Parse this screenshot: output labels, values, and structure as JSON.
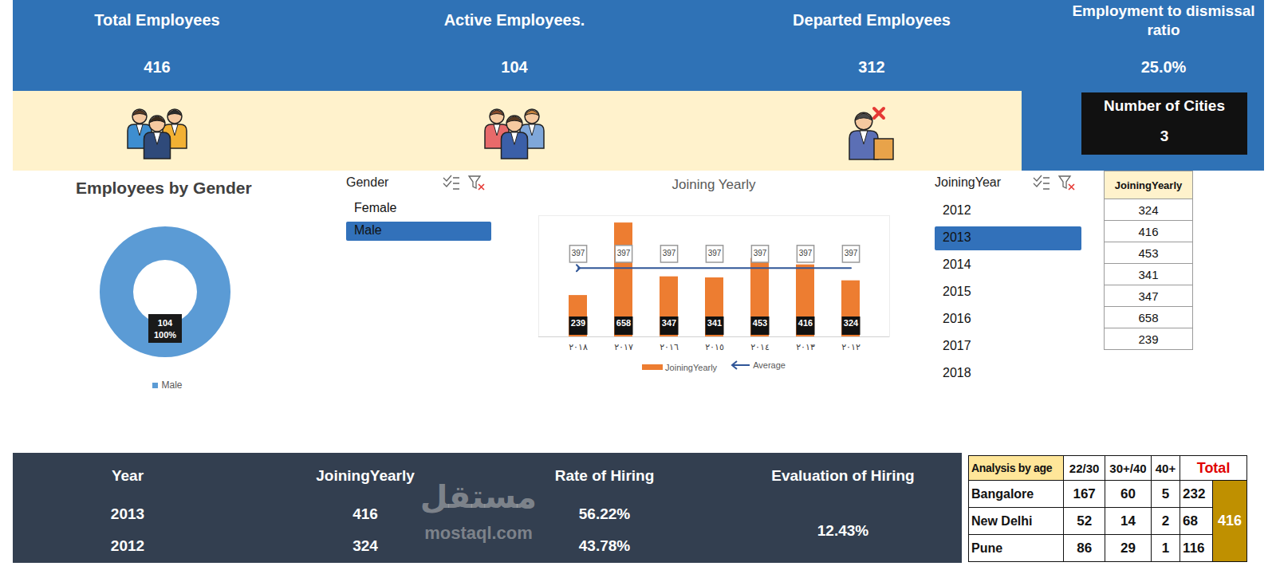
{
  "kpis": [
    {
      "title": "Total Employees",
      "value": 416
    },
    {
      "title": "Active Employees.",
      "value": 104
    },
    {
      "title": "Departed Employees",
      "value": 312
    },
    {
      "title": "Employment to dismissal ratio",
      "value": "25.0%"
    }
  ],
  "cities": {
    "title": "Number of Cities",
    "value": 3
  },
  "chart_data": [
    {
      "type": "pie",
      "title": "Employees by Gender",
      "categories": [
        "Male"
      ],
      "values": [
        100
      ],
      "value_labels": [
        "100%"
      ],
      "counts": [
        104
      ],
      "colors": [
        "#5B9BD5"
      ],
      "legend": "bottom",
      "data_labels": true
    },
    {
      "type": "bar",
      "title": "Joining Yearly",
      "categories": [
        "٢٠١٨",
        "٢٠١٧",
        "٢٠١٦",
        "٢٠١٥",
        "٢٠١٤",
        "٢٠١٣",
        "٢٠١٢"
      ],
      "series": [
        {
          "name": "JoiningYearly",
          "type": "bar",
          "color": "#ED7D31",
          "values": [
            239,
            658,
            347,
            341,
            453,
            416,
            324
          ]
        },
        {
          "name": "Average",
          "type": "line",
          "color": "#2F5597",
          "marker": "arrow",
          "values": [
            397,
            397,
            397,
            397,
            397,
            397,
            397
          ]
        }
      ],
      "ylim": [
        0,
        700
      ],
      "yticks": [],
      "tick_labels": "x",
      "data_labels": true,
      "legend": "bottom"
    }
  ],
  "slicers": [
    {
      "title": "Gender",
      "items": [
        "Female",
        "Male"
      ],
      "selected": [
        "Male"
      ]
    },
    {
      "title": "JoiningYear",
      "items": [
        "2012",
        "2013",
        "2014",
        "2015",
        "2016",
        "2017",
        "2018"
      ],
      "selected": [
        "2013"
      ]
    }
  ],
  "joining_table": {
    "header": "JoiningYearly",
    "rows": [
      324,
      416,
      453,
      341,
      347,
      658,
      239
    ]
  },
  "hiring_table": {
    "columns": [
      "Year",
      "JoiningYearly",
      "Rate of Hiring",
      "Evaluation of Hiring"
    ],
    "rows": [
      [
        "2013",
        416,
        "56.22%"
      ],
      [
        "2012",
        324,
        "43.78%"
      ]
    ],
    "evaluation": "12.43%"
  },
  "age_table": {
    "title": "Analysis by age",
    "columns": [
      "22/30",
      "30+/40",
      "40+",
      "Total"
    ],
    "rows": [
      {
        "city": "Bangalore",
        "values": [
          167,
          60,
          5,
          232
        ]
      },
      {
        "city": "New Delhi",
        "values": [
          52,
          14,
          2,
          68
        ]
      },
      {
        "city": "Pune",
        "values": [
          86,
          29,
          1,
          116
        ]
      }
    ],
    "grand_total": 416
  },
  "watermark": [
    "مستقل",
    "mostaql.com"
  ]
}
